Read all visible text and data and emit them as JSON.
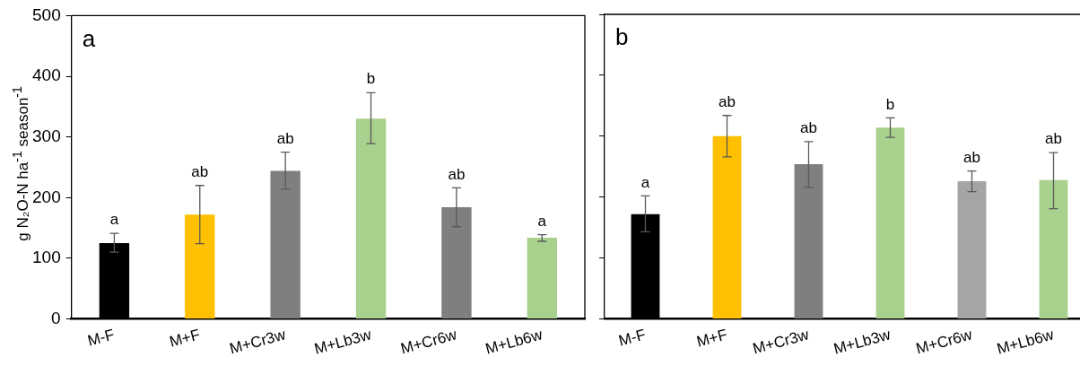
{
  "chart_data": [
    {
      "type": "bar",
      "ylabel": "g N₂O-N ha$^{-1}$ season$^{-1}$",
      "categories": [
        "M-F",
        "M+F",
        "M+Cr3w",
        "M+Lb3w",
        "M+Cr6w",
        "M+Lb6w"
      ],
      "values": [
        125,
        172,
        244,
        330,
        184,
        134
      ],
      "colors": [
        "#000000",
        "#ffc000",
        "#7f7f7f",
        "#a9d18e",
        "#7f7f7f",
        "#a9d18e"
      ],
      "errors": [
        [
          110,
          141
        ],
        [
          124,
          220
        ],
        [
          214,
          275
        ],
        [
          289,
          373
        ],
        [
          152,
          216
        ],
        [
          128,
          139
        ]
      ],
      "ylim": [
        0,
        500
      ],
      "yticks": [
        0,
        100,
        200,
        300,
        400,
        500
      ],
      "grid": false,
      "annotations": [
        "a",
        {
          "text": "a",
          "x": "M-F",
          "y": 141
        },
        {
          "text": "ab",
          "x": "M+F",
          "y": 220
        },
        {
          "text": "ab",
          "x": "M+Cr3w",
          "y": 275
        },
        {
          "text": "b",
          "x": "M+Lb3w",
          "y": 373
        },
        {
          "text": "ab",
          "x": "M+Cr6w",
          "y": 216
        },
        {
          "text": "a",
          "x": "M+Lb6w",
          "y": 139
        }
      ]
    },
    {
      "type": "bar",
      "categories": [
        "M-F",
        "M+F",
        "M+Cr3w",
        "M+Lb3w",
        "M+Cr6w",
        "M+Lb6w"
      ],
      "values": [
        172,
        300,
        254,
        314,
        226,
        228
      ],
      "colors": [
        "#000000",
        "#ffc000",
        "#7f7f7f",
        "#a9d18e",
        "#a5a5a5",
        "#a9d18e"
      ],
      "errors": [
        [
          143,
          202
        ],
        [
          266,
          334
        ],
        [
          216,
          291
        ],
        [
          298,
          330
        ],
        [
          209,
          243
        ],
        [
          181,
          273
        ]
      ],
      "ylim": [
        0,
        500
      ],
      "yticks": [
        0,
        100,
        200,
        300,
        400,
        500
      ],
      "grid": false,
      "tick_labels": "x",
      "annotations": [
        "b",
        {
          "text": "a",
          "x": "M-F",
          "y": 202
        },
        {
          "text": "ab",
          "x": "M+F",
          "y": 334
        },
        {
          "text": "ab",
          "x": "M+Cr3w",
          "y": 291
        },
        {
          "text": "b",
          "x": "M+Lb3w",
          "y": 330
        },
        {
          "text": "ab",
          "x": "M+Cr6w",
          "y": 243
        },
        {
          "text": "ab",
          "x": "M+Lb6w",
          "y": 273
        }
      ]
    }
  ]
}
